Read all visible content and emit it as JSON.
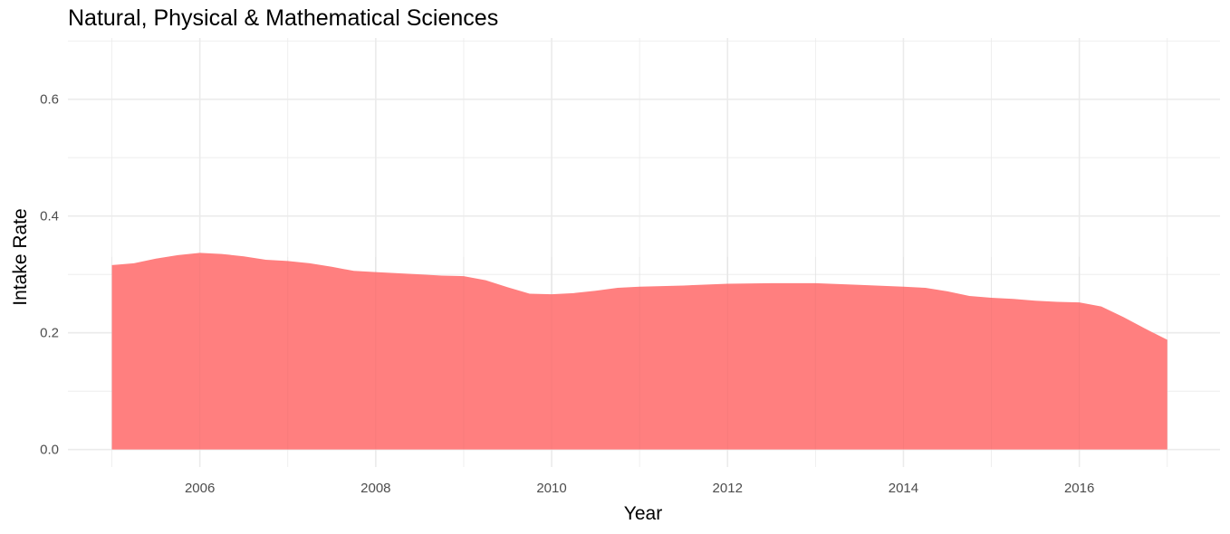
{
  "chart_data": {
    "type": "area",
    "title": "Natural, Physical & Mathematical Sciences",
    "xlabel": "Year",
    "ylabel": "Intake Rate",
    "xlim": [
      2004.5,
      2017.6
    ],
    "ylim": [
      -0.03,
      0.705
    ],
    "x_ticks": [
      2006,
      2008,
      2010,
      2012,
      2014,
      2016
    ],
    "y_ticks": [
      0.0,
      0.2,
      0.4,
      0.6
    ],
    "y_tick_labels": [
      "0.0",
      "0.2",
      "0.4",
      "0.6"
    ],
    "grid": true,
    "fill_color": "#ff7f7f",
    "series": [
      {
        "x": [
          2005.0,
          2005.25,
          2005.5,
          2005.75,
          2006.0,
          2006.25,
          2006.5,
          2006.75,
          2007.0,
          2007.25,
          2007.5,
          2007.75,
          2008.0,
          2008.25,
          2008.5,
          2008.75,
          2009.0,
          2009.25,
          2009.5,
          2009.75,
          2010.0,
          2010.25,
          2010.5,
          2010.75,
          2011.0,
          2011.5,
          2012.0,
          2012.5,
          2013.0,
          2013.5,
          2014.0,
          2014.25,
          2014.5,
          2014.75,
          2015.0,
          2015.25,
          2015.5,
          2015.75,
          2016.0,
          2016.25,
          2016.5,
          2016.75,
          2017.0
        ],
        "y": [
          0.316,
          0.319,
          0.327,
          0.333,
          0.337,
          0.335,
          0.331,
          0.325,
          0.323,
          0.319,
          0.313,
          0.306,
          0.304,
          0.302,
          0.3,
          0.298,
          0.297,
          0.29,
          0.278,
          0.267,
          0.266,
          0.268,
          0.272,
          0.277,
          0.279,
          0.281,
          0.284,
          0.285,
          0.285,
          0.282,
          0.279,
          0.277,
          0.271,
          0.263,
          0.26,
          0.258,
          0.255,
          0.253,
          0.252,
          0.245,
          0.227,
          0.207,
          0.188
        ]
      }
    ]
  }
}
